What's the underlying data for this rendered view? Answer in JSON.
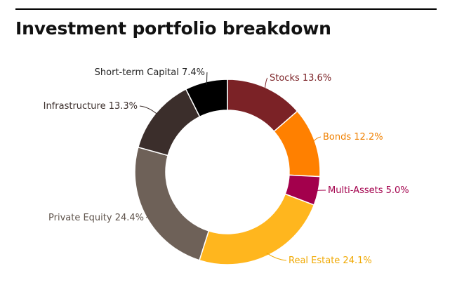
{
  "header": {
    "title": "Investment portfolio breakdown"
  },
  "chart_data": {
    "type": "pie",
    "donut": true,
    "title": "Investment portfolio breakdown",
    "slices": [
      {
        "name": "Stocks",
        "value": 13.6,
        "label": "Stocks 13.6%",
        "color": "#7b2226",
        "label_color": "#7b2226"
      },
      {
        "name": "Bonds",
        "value": 12.2,
        "label": "Bonds 12.2%",
        "color": "#ff8000",
        "label_color": "#f08000"
      },
      {
        "name": "Multi-Assets",
        "value": 5.0,
        "label": "Multi-Assets 5.0%",
        "color": "#a3004c",
        "label_color": "#a3004c"
      },
      {
        "name": "Real Estate",
        "value": 24.1,
        "label": "Real Estate 24.1%",
        "color": "#ffb61e",
        "label_color": "#f0a800"
      },
      {
        "name": "Private Equity",
        "value": 24.4,
        "label": "Private Equity 24.4%",
        "color": "#6e6158",
        "label_color": "#5f544c"
      },
      {
        "name": "Infrastructure",
        "value": 13.3,
        "label": "Infrastructure 13.3%",
        "color": "#3b2e2b",
        "label_color": "#3b2e2b"
      },
      {
        "name": "Short-term Capital",
        "value": 7.4,
        "label": "Short-term Capital 7.4%",
        "color": "#000000",
        "label_color": "#222222"
      }
    ]
  }
}
